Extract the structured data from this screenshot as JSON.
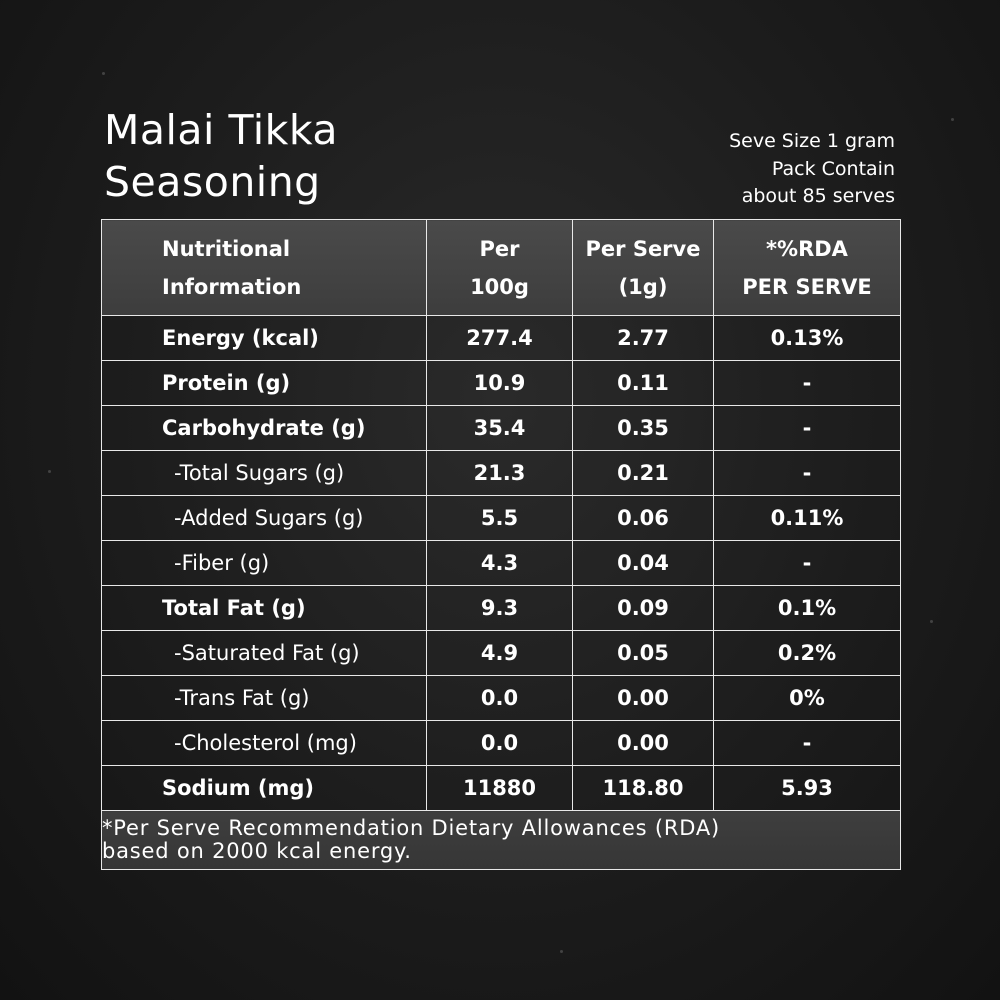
{
  "title": {
    "line1": "Malai Tikka",
    "line2": "Seasoning"
  },
  "serve_info": {
    "line1": "Seve Size 1 gram",
    "line2": "Pack Contain",
    "line3": "about 85  serves"
  },
  "table": {
    "headers": [
      {
        "line1": "Nutritional",
        "line2": "Information"
      },
      {
        "line1": "Per",
        "line2": "100g"
      },
      {
        "line1": "Per Serve",
        "line2": "(1g)"
      },
      {
        "line1": "*%RDA",
        "line2": "PER SERVE"
      }
    ],
    "rows": [
      {
        "label": "Energy (kcal)",
        "per100": "277.4",
        "perServe": "2.77",
        "rda": "0.13%",
        "sub": false
      },
      {
        "label": "Protein (g)",
        "per100": "10.9",
        "perServe": "0.11",
        "rda": "-",
        "sub": false
      },
      {
        "label": "Carbohydrate (g)",
        "per100": "35.4",
        "perServe": "0.35",
        "rda": "-",
        "sub": false
      },
      {
        "label": "-Total Sugars (g)",
        "per100": "21.3",
        "perServe": "0.21",
        "rda": "-",
        "sub": true
      },
      {
        "label": "-Added Sugars (g)",
        "per100": "5.5",
        "perServe": "0.06",
        "rda": "0.11%",
        "sub": true
      },
      {
        "label": "-Fiber (g)",
        "per100": "4.3",
        "perServe": "0.04",
        "rda": "-",
        "sub": true
      },
      {
        "label": "Total Fat (g)",
        "per100": "9.3",
        "perServe": "0.09",
        "rda": "0.1%",
        "sub": false
      },
      {
        "label": "-Saturated Fat (g)",
        "per100": "4.9",
        "perServe": "0.05",
        "rda": "0.2%",
        "sub": true
      },
      {
        "label": "-Trans Fat (g)",
        "per100": "0.0",
        "perServe": "0.00",
        "rda": "0%",
        "sub": true
      },
      {
        "label": "-Cholesterol (mg)",
        "per100": "0.0",
        "perServe": "0.00",
        "rda": "-",
        "sub": true
      },
      {
        "label": "Sodium (mg)",
        "per100": "11880",
        "perServe": "118.80",
        "rda": "5.93",
        "sub": false
      }
    ],
    "footnote": {
      "line1": "*Per Serve Recommendation Dietary Allowances (RDA)",
      "line2": "based on 2000 kcal energy."
    }
  }
}
